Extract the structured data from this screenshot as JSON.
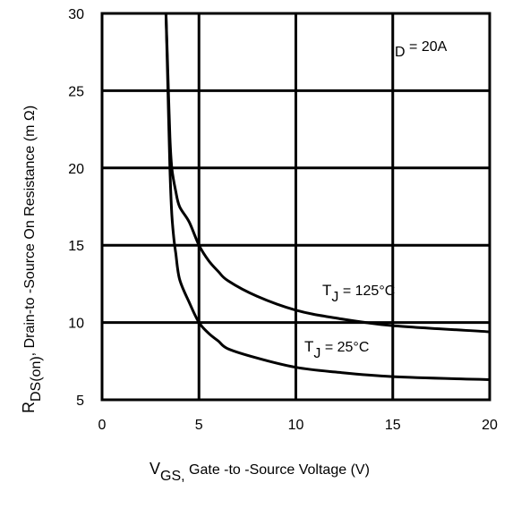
{
  "chart_data": {
    "type": "line",
    "xlabel": {
      "main": "V",
      "sub": "GS,",
      "rest": " Gate -to -Source Voltage  (V)"
    },
    "ylabel": {
      "main": "R",
      "sub": "DS(on)",
      "rest": ",  Drain-to -Source On Resistance (m Ω)"
    },
    "xlim": [
      0,
      20
    ],
    "ylim": [
      5,
      30
    ],
    "x_ticks": [
      0,
      5,
      10,
      15,
      20
    ],
    "y_ticks": [
      5,
      10,
      15,
      20,
      25,
      30
    ],
    "x_tick_labels": [
      "0",
      "5",
      "10",
      "15",
      "20"
    ],
    "y_tick_labels": [
      "5",
      "10",
      "15",
      "20",
      "25",
      "30"
    ],
    "grid": true,
    "annotations": {
      "condition": {
        "main": "I",
        "sub": "D",
        "rest": " = 20A"
      },
      "series_125": {
        "main": "T",
        "sub": "J",
        "rest": " = 125°C"
      },
      "series_25": {
        "main": "T",
        "sub": "J",
        "rest": " = 25°C"
      }
    },
    "series": [
      {
        "id": "tj125",
        "x": [
          3.3,
          3.4,
          3.5,
          3.6,
          3.8,
          4.0,
          4.5,
          5.0,
          5.5,
          6.0,
          6.5,
          8.0,
          10.0,
          12.0,
          15.0,
          20.0
        ],
        "y": [
          30.0,
          26.0,
          22.0,
          20.0,
          18.5,
          17.5,
          16.5,
          15.0,
          14.0,
          13.3,
          12.7,
          11.7,
          10.8,
          10.3,
          9.8,
          9.4
        ]
      },
      {
        "id": "tj25",
        "x": [
          3.3,
          3.4,
          3.5,
          3.6,
          3.7,
          3.8,
          4.0,
          4.5,
          5.0,
          5.5,
          6.0,
          6.5,
          8.0,
          10.0,
          12.0,
          15.0,
          20.0
        ],
        "y": [
          30.0,
          25.0,
          20.0,
          17.0,
          15.5,
          14.5,
          12.8,
          11.3,
          10.0,
          9.3,
          8.8,
          8.3,
          7.7,
          7.1,
          6.8,
          6.5,
          6.3
        ]
      }
    ]
  }
}
